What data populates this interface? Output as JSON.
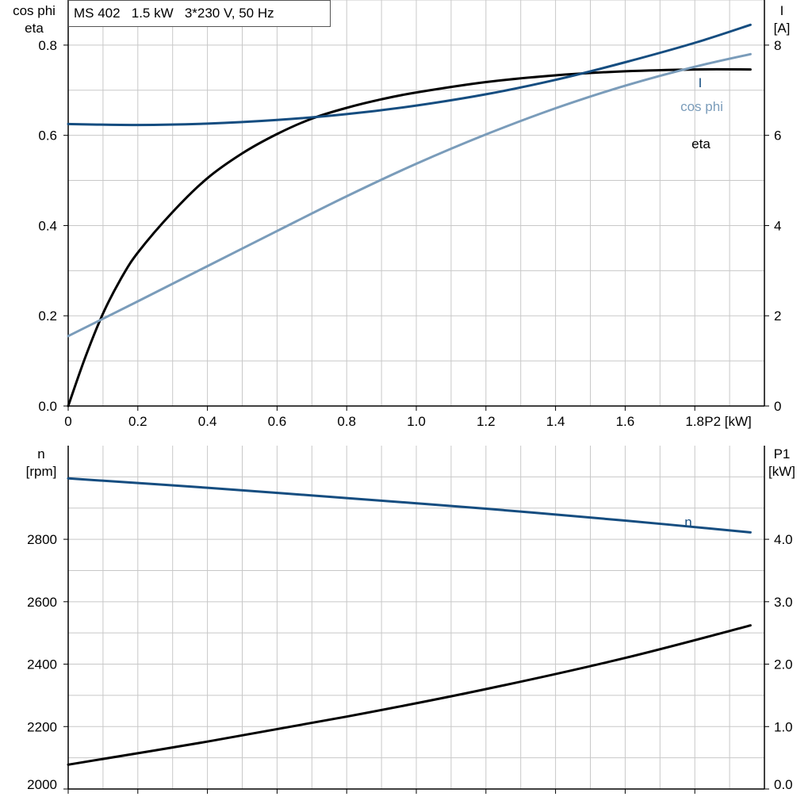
{
  "chart_data": [
    {
      "type": "line",
      "title": "MS 402   1.5 kW   3*230 V, 50 Hz",
      "xlabel": "P2 [kW]",
      "xlim": [
        0,
        2.0
      ],
      "xticks": [
        0,
        0.2,
        0.4,
        0.6,
        0.8,
        1.0,
        1.2,
        1.4,
        1.6,
        1.8
      ],
      "xtick_labels": [
        "0",
        "0.2",
        "0.4",
        "0.6",
        "0.8",
        "1.0",
        "1.2",
        "1.4",
        "1.6",
        "1.8"
      ],
      "ylabel_left": [
        "cos phi",
        "eta"
      ],
      "ylim_left": [
        0,
        0.9
      ],
      "yticks_left": [
        0,
        0.2,
        0.4,
        0.6,
        0.8
      ],
      "ytick_labels_left": [
        "0.0",
        "0.2",
        "0.4",
        "0.6",
        "0.8"
      ],
      "ylabel_right": [
        "I",
        "[A]"
      ],
      "ylim_right": [
        0,
        9
      ],
      "yticks_right": [
        0,
        2,
        4,
        6,
        8
      ],
      "ytick_labels_right": [
        "0",
        "2",
        "4",
        "6",
        "8"
      ],
      "grid": true,
      "series": [
        {
          "name": "eta",
          "axis": "left",
          "color": "#000000",
          "x": [
            0,
            0.05,
            0.1,
            0.15,
            0.2,
            0.3,
            0.4,
            0.5,
            0.6,
            0.7,
            0.8,
            0.9,
            1.0,
            1.2,
            1.4,
            1.6,
            1.8,
            1.96
          ],
          "y": [
            0,
            0.11,
            0.205,
            0.28,
            0.34,
            0.43,
            0.505,
            0.56,
            0.603,
            0.637,
            0.661,
            0.68,
            0.695,
            0.718,
            0.733,
            0.742,
            0.746,
            0.746
          ]
        },
        {
          "name": "cos phi",
          "axis": "left",
          "color": "#7a9cba",
          "x": [
            0,
            0.2,
            0.4,
            0.6,
            0.8,
            1.0,
            1.2,
            1.4,
            1.6,
            1.8,
            1.96
          ],
          "y": [
            0.155,
            0.232,
            0.31,
            0.388,
            0.465,
            0.537,
            0.602,
            0.66,
            0.71,
            0.752,
            0.78
          ]
        },
        {
          "name": "I",
          "axis": "right",
          "color": "#154d80",
          "x": [
            0,
            0.2,
            0.4,
            0.6,
            0.8,
            1.0,
            1.2,
            1.4,
            1.6,
            1.8,
            1.96
          ],
          "y": [
            6.25,
            6.23,
            6.26,
            6.34,
            6.47,
            6.66,
            6.91,
            7.23,
            7.62,
            8.05,
            8.45
          ]
        }
      ]
    },
    {
      "type": "line",
      "xlim": [
        0,
        2.0
      ],
      "xticks": [
        0,
        0.2,
        0.4,
        0.6,
        0.8,
        1.0,
        1.2,
        1.4,
        1.6,
        1.8
      ],
      "ylabel_left": [
        "n",
        "[rpm]"
      ],
      "ylim_left": [
        2000,
        3100
      ],
      "yticks_left": [
        2000,
        2200,
        2400,
        2600,
        2800
      ],
      "ytick_labels_left": [
        "2000",
        "2200",
        "2400",
        "2600",
        "2800"
      ],
      "ylabel_right": [
        "P1",
        "[kW]"
      ],
      "ylim_right": [
        0,
        5.5
      ],
      "yticks_right": [
        0,
        1,
        2,
        3,
        4
      ],
      "ytick_labels_right": [
        "0.0",
        "1.0",
        "2.0",
        "3.0",
        "4.0"
      ],
      "grid": true,
      "series": [
        {
          "name": "n",
          "axis": "left",
          "color": "#154d80",
          "x": [
            0,
            0.4,
            0.8,
            1.2,
            1.6,
            1.96
          ],
          "y": [
            2995,
            2965,
            2932,
            2898,
            2860,
            2822
          ]
        },
        {
          "name": "",
          "axis": "right",
          "color": "#000000",
          "x": [
            0,
            0.4,
            0.8,
            1.2,
            1.6,
            1.96
          ],
          "y": [
            0.39,
            0.76,
            1.16,
            1.6,
            2.1,
            2.62
          ]
        }
      ]
    }
  ]
}
